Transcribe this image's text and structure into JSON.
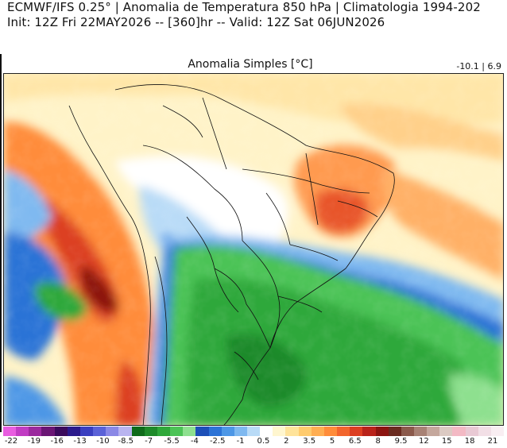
{
  "header": {
    "line1": "ECMWF/IFS 0.25° | Anomalia de Temperatura 850 hPa | Climatologia 1994-202",
    "line2": "Init: 12Z Fri 22MAY2026 -- [360]hr -- Valid: 12Z Sat 06JUN2026"
  },
  "map": {
    "subtitle": "Anomalia Simples [°C]",
    "range_text": "-10.1 | 6.9",
    "min_value": -10.1,
    "max_value": 6.9,
    "units": "°C"
  },
  "colorbar": {
    "colors": [
      "#e85de0",
      "#c13cc3",
      "#9b2a9e",
      "#6b1675",
      "#3b0a5c",
      "#2b1a8c",
      "#3a3fc0",
      "#5b62d8",
      "#8a88e6",
      "#b9b4f0",
      "#0f6b1a",
      "#1e8a2a",
      "#2fa83a",
      "#4cc356",
      "#8ee08f",
      "#1c4fb8",
      "#2c73d6",
      "#4d97e6",
      "#7fb9f0",
      "#b9dbf7",
      "#ffffff",
      "#fff6cf",
      "#ffe39a",
      "#ffcb6e",
      "#ffae52",
      "#ff8c3a",
      "#f2652d",
      "#dc3f22",
      "#b9221a",
      "#8c1410",
      "#6a2b20",
      "#8b5a4c",
      "#a88275",
      "#c4a79c",
      "#dccac3",
      "#f3b9c4",
      "#e9c9d4",
      "#f2dfe6",
      "#f9eef2"
    ],
    "labels": [
      "-22",
      "-19",
      "-16",
      "-13",
      "-10",
      "-8.5",
      "-7",
      "-5.5",
      "-4",
      "-2.5",
      "-1",
      "0.5",
      "2",
      "3.5",
      "5",
      "6.5",
      "8",
      "9.5",
      "12",
      "15",
      "18",
      "21"
    ]
  },
  "map_features": [
    "continent-land",
    "country-borders",
    "brazil-state-borders",
    "south-atlantic-ocean",
    "south-pacific-ocean"
  ]
}
